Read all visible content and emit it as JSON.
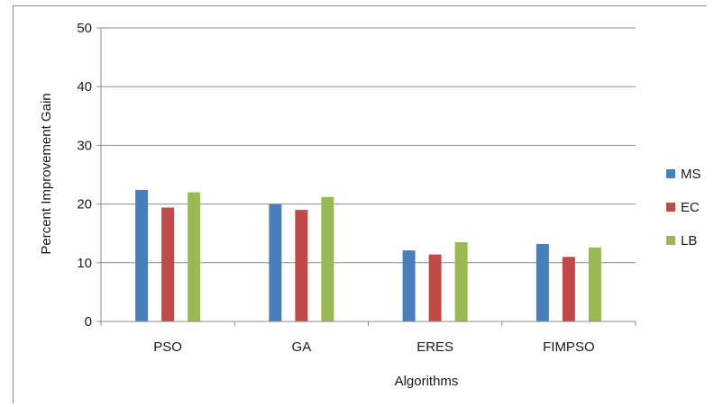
{
  "chart_data": {
    "type": "bar",
    "categories": [
      "PSO",
      "GA",
      "ERES",
      "FIMPSO"
    ],
    "series": [
      {
        "name": "MS",
        "color": "#4a7ebb",
        "values": [
          22.4,
          20.0,
          12.1,
          13.2
        ]
      },
      {
        "name": "EC",
        "color": "#be4b48",
        "values": [
          19.4,
          19.0,
          11.4,
          11.0
        ]
      },
      {
        "name": "LB",
        "color": "#98b954",
        "values": [
          22.0,
          21.2,
          13.5,
          12.6
        ]
      }
    ],
    "xlabel": "Algorithms",
    "ylabel": "Percent Improvement Gain",
    "ylim": [
      0,
      50
    ],
    "yticks": [
      0,
      10,
      20,
      30,
      40,
      50
    ],
    "grid": true,
    "legend": "right"
  }
}
